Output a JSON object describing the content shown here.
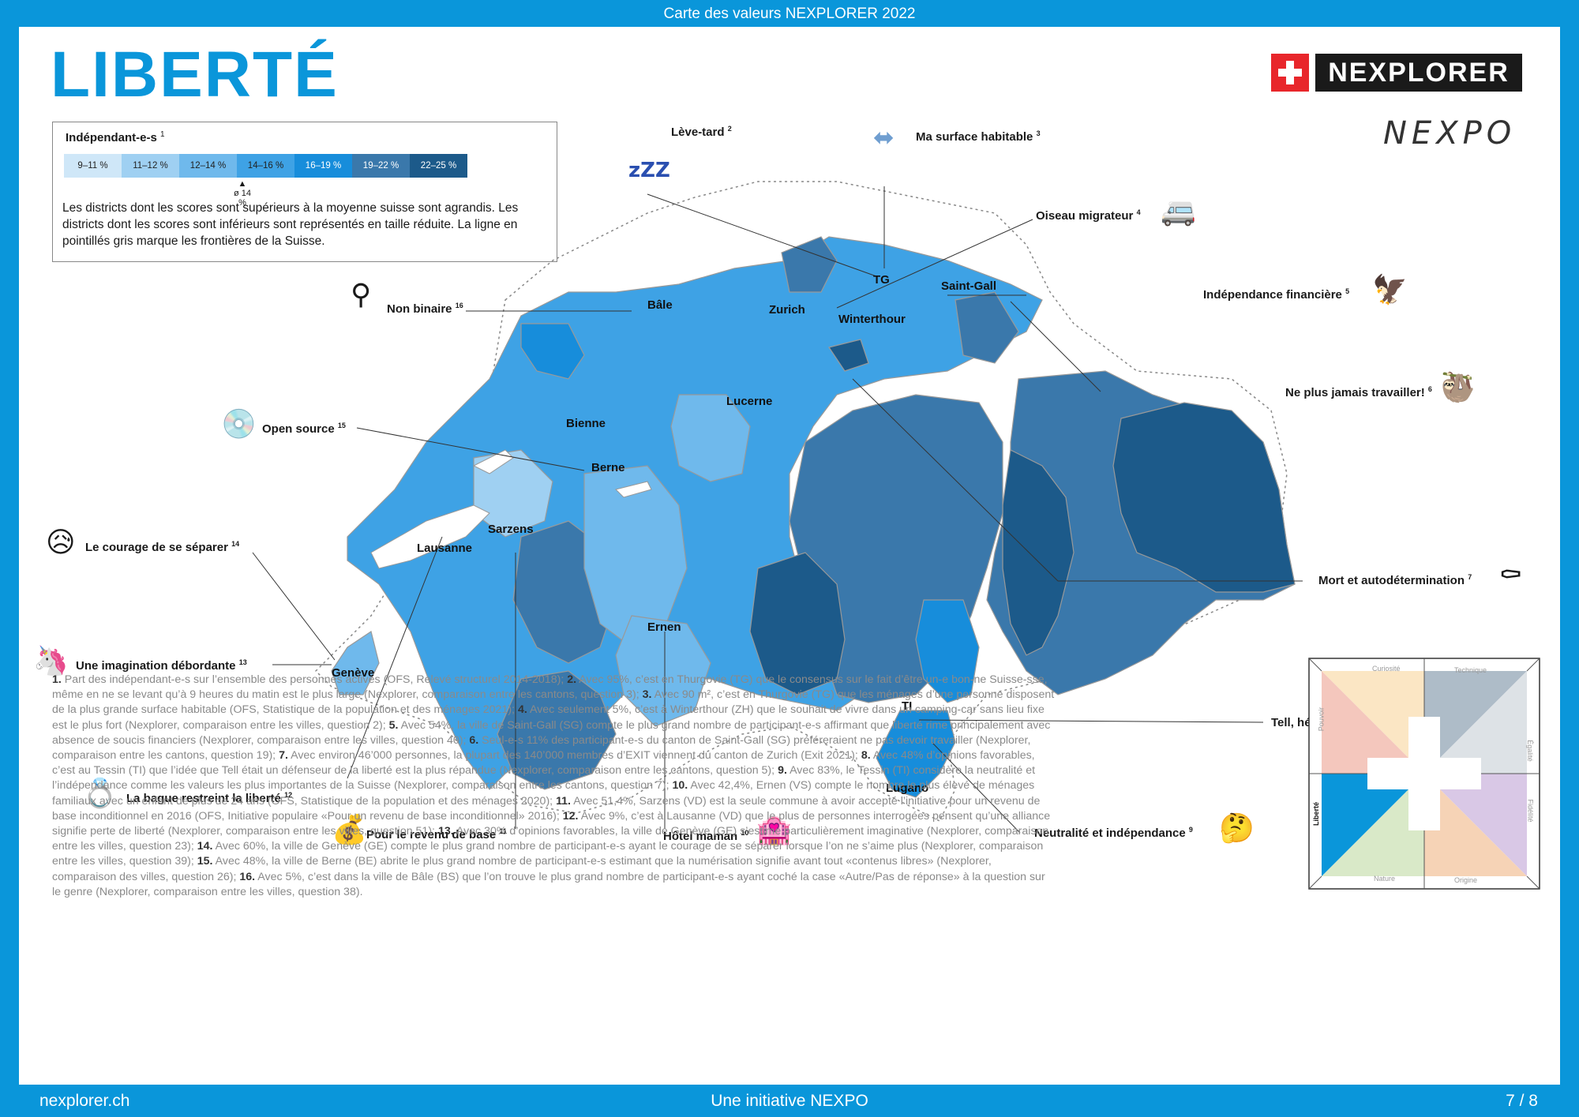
{
  "header": {
    "top_title": "Carte des valeurs NEXPLORER 2022"
  },
  "page": {
    "title": "LIBERTÉ"
  },
  "brand": {
    "name": "NEXPLORER",
    "secondary": "NEXPO",
    "flag_color": "#e8262b"
  },
  "legend": {
    "title": "Indépendant-e-s",
    "title_note": "1",
    "classes": [
      {
        "label": "9–11 %",
        "color": "#cfe7f8"
      },
      {
        "label": "11–12 %",
        "color": "#9fd0f2"
      },
      {
        "label": "12–14 %",
        "color": "#6fb9ec"
      },
      {
        "label": "14–16 %",
        "color": "#3ea2e5"
      },
      {
        "label": "16–19 %",
        "color": "#178ddb"
      },
      {
        "label": "19–22 %",
        "color": "#3a78ab"
      },
      {
        "label": "22–25 %",
        "color": "#1c5a8a"
      }
    ],
    "average": "ø 14 %",
    "description": "Les districts dont les scores sont supérieurs à la moyenne suisse sont agrandis. Les districts dont les scores sont inférieurs sont représentés en taille réduite. La ligne en pointillés gris marque les frontières de la Suisse."
  },
  "cities": [
    "TG",
    "Saint-Gall",
    "Bâle",
    "Zurich",
    "Winterthour",
    "Lucerne",
    "Bienne",
    "Berne",
    "Sarzens",
    "Lausanne",
    "Genève",
    "Ernen",
    "TI",
    "Lugano"
  ],
  "callouts": [
    {
      "label": "Lève-tard",
      "note": "2",
      "icon": "sleep-icon"
    },
    {
      "label": "Ma surface habitable",
      "note": "3",
      "icon": "arrows-icon"
    },
    {
      "label": "Oiseau migrateur",
      "note": "4",
      "icon": "camper-van-icon"
    },
    {
      "label": "Indépendance financière",
      "note": "5",
      "icon": "eagle-icon"
    },
    {
      "label": "Ne plus jamais travailler!",
      "note": "6",
      "icon": "sloth-icon"
    },
    {
      "label": "Mort et autodétermination",
      "note": "7",
      "icon": "coffin-icon"
    },
    {
      "label": "Tell, héros de la liberté",
      "note": "8",
      "icon": "target-icon"
    },
    {
      "label": "Neutralité et indépendance",
      "note": "9",
      "icon": "thinking-face-icon"
    },
    {
      "label": "Hôtel maman",
      "note": "10",
      "icon": "love-hotel-icon"
    },
    {
      "label": "Pour le revenu de base",
      "note": "11",
      "icon": "money-bag-icon"
    },
    {
      "label": "La bague restreint la liberté",
      "note": "12",
      "icon": "ring-icon"
    },
    {
      "label": "Une imagination débordante",
      "note": "13",
      "icon": "unicorn-icon"
    },
    {
      "label": "Le courage de se séparer",
      "note": "14",
      "icon": "sad-face-icon"
    },
    {
      "label": "Open source",
      "note": "15",
      "icon": "disc-icon"
    },
    {
      "label": "Non binaire",
      "note": "16",
      "icon": "nonbinary-symbol-icon"
    }
  ],
  "footnotes": [
    {
      "n": "1.",
      "text": "Part des indépendant-e-s sur l’ensemble des personnes actives (OFS, Relevé structurel 2014-2018);"
    },
    {
      "n": "2.",
      "text": "Avec 95%, c’est en Thurgovie (TG) que le consensus sur le fait d’être un-e bon-ne Suisse-sse, même en ne se levant qu’à 9 heures du matin est le plus large (Nexplorer, comparaison entre les cantons, question 3);"
    },
    {
      "n": "3.",
      "text": "Avec 90 m², c’est en Thurgovie (TG) que les ménages d’une personne disposent de la plus grande surface habitable (OFS, Statistique de la population et des ménages 2021);"
    },
    {
      "n": "4.",
      "text": "Avec seulement 5%, c’est à Winterthour (ZH) que le souhait de vivre dans un camping-car sans lieu fixe est le plus fort (Nexplorer, comparaison entre les villes, question 2);"
    },
    {
      "n": "5.",
      "text": "Avec 54%, la ville de Saint-Gall (SG) compte le plus grand nombre de participant-e-s affirmant que liberté rime principalement avec absence de soucis financiers (Nexplorer, comparaison entre les villes, question 40);"
    },
    {
      "n": "6.",
      "text": "Seul-e-s 11% des participant-e-s du canton de Saint-Gall (SG) préféreraient ne pas devoir travailler (Nexplorer, comparaison entre les cantons, question 19);"
    },
    {
      "n": "7.",
      "text": "Avec environ 46’000 personnes, la plupart des 140’000 membres d’EXIT viennent du canton de Zurich (Exit 2021);"
    },
    {
      "n": "8.",
      "text": "Avec 48% d’opinions favorables, c’est au Tessin (TI) que l’idée que Tell était un défenseur de la liberté est la plus répandue (Nexplorer, comparaison entre les cantons, question 5);"
    },
    {
      "n": "9.",
      "text": "Avec 83%, le Tessin (TI) considère la neutralité et l’indépendance comme les valeurs les plus importantes de la Suisse (Nexplorer, comparaison entre les cantons, question 7);"
    },
    {
      "n": "10.",
      "text": "Avec 42,4%, Ernen (VS) compte le nombre le plus élevé de ménages familiaux avec un enfant de plus de 24 ans (OFS, Statistique de la population et des ménages 2020);"
    },
    {
      "n": "11.",
      "text": "Avec 51,4%, Sarzens (VD) est la seule commune à avoir accepté l’initiative pour un revenu de base inconditionnel en 2016 (OFS, Initiative populaire «Pour un revenu de base inconditionnel» 2016);"
    },
    {
      "n": "12.",
      "text": "Avec 9%, c’est à Lausanne (VD) que le plus de personnes interrogées pensent qu’une alliance signifie perte de liberté (Nexplorer, comparaison entre les villes, question 51);"
    },
    {
      "n": "13.",
      "text": "Avec 30% d’opinions favorables, la ville de Genève (GE) s’estime particulièrement imaginative (Nexplorer, comparaison entre les villes, question 23);"
    },
    {
      "n": "14.",
      "text": "Avec 60%, la ville de Genève (GE) compte le plus grand nombre de participant-e-s ayant le courage de se séparer lorsque l’on ne s’aime plus (Nexplorer, comparaison entre les villes, question 39);"
    },
    {
      "n": "15.",
      "text": "Avec 48%, la ville de Berne (BE) abrite le plus grand nombre de participant-e-s estimant que la numérisation signifie avant tout «contenus libres» (Nexplorer, comparaison des villes, question 26);"
    },
    {
      "n": "16.",
      "text": "Avec 5%, c’est dans la ville de Bâle (BS) que l’on trouve le plus grand nombre de participant-e-s ayant coché la case «Autre/Pas de réponse» à la question sur le genre (Nexplorer, comparaison entre les villes, question 38)."
    }
  ],
  "compass": {
    "labels": [
      "Curiosité",
      "Technique",
      "Égalité",
      "Fidélité",
      "Origine",
      "Nature",
      "Liberté",
      "Pouvoir"
    ],
    "active": "Liberté"
  },
  "footer": {
    "left": "nexplorer.ch",
    "center": "Une initiative NEXPO",
    "right": "7 / 8"
  }
}
